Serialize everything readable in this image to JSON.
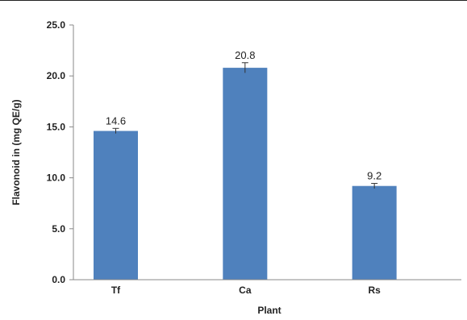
{
  "chart_data": {
    "type": "bar",
    "categories": [
      "Tf",
      "Ca",
      "Rs"
    ],
    "values": [
      14.6,
      20.8,
      9.2
    ],
    "data_labels": [
      "14.6",
      "20.8",
      "9.2"
    ],
    "error_bars": [
      0.25,
      0.5,
      0.25
    ],
    "xlabel": "Plant",
    "ylabel": "Flavonoid in (mg QE/g)",
    "ylim": [
      0,
      25
    ],
    "yticks": [
      "0.0",
      "5.0",
      "10.0",
      "15.0",
      "20.0",
      "25.0"
    ],
    "grid": false,
    "legend": "none",
    "bar_color": "#4f81bd"
  }
}
